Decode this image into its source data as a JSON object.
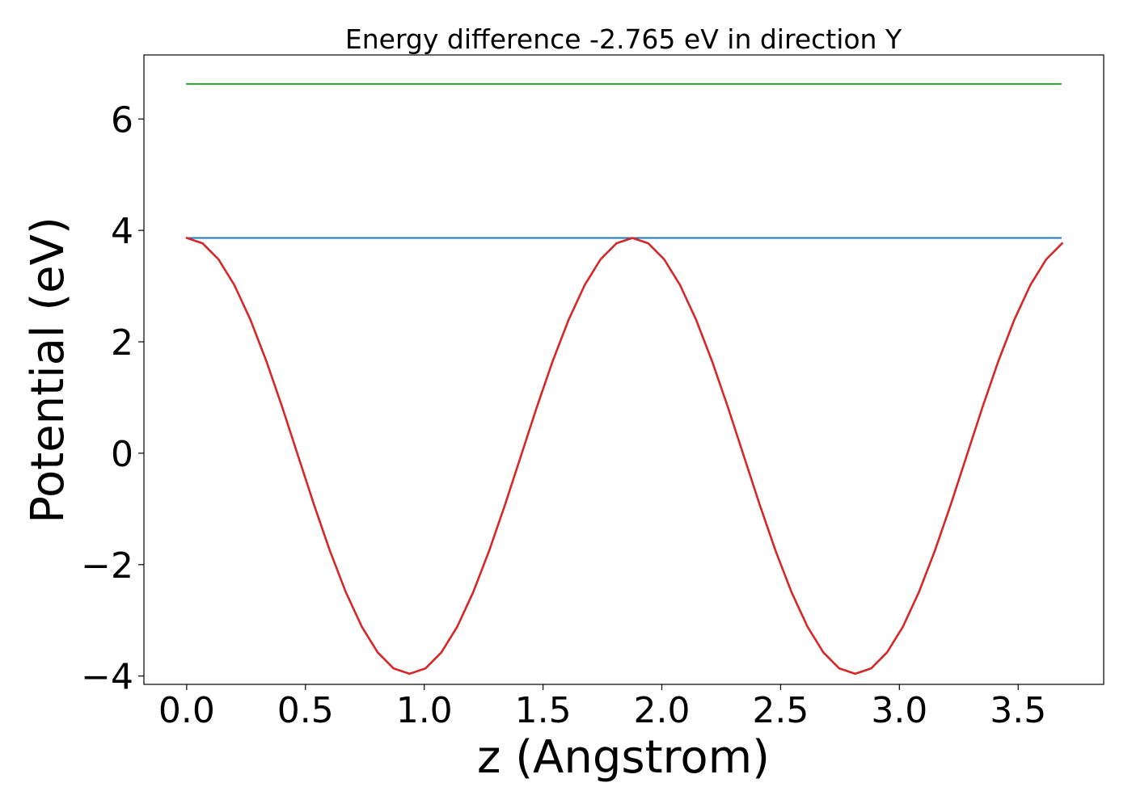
{
  "chart_data": {
    "type": "line",
    "title": "Energy difference -2.765 eV in direction Y",
    "xlabel": "z (Angstrom)",
    "ylabel": "Potential (eV)",
    "xlim": [
      -0.18,
      3.86
    ],
    "ylim": [
      -4.15,
      7.15
    ],
    "xticks": [
      0.0,
      0.5,
      1.0,
      1.5,
      2.0,
      2.5,
      3.0,
      3.5
    ],
    "xtick_labels": [
      "0.0",
      "0.5",
      "1.0",
      "1.5",
      "2.0",
      "2.5",
      "3.0",
      "3.5"
    ],
    "yticks": [
      -4,
      -2,
      0,
      2,
      4,
      6
    ],
    "ytick_labels": [
      "−4",
      "−2",
      "0",
      "2",
      "4",
      "6"
    ],
    "grid": false,
    "series": [
      {
        "color": "#2ca02c",
        "x": [
          0.0,
          3.68
        ],
        "y": [
          6.63,
          6.63
        ]
      },
      {
        "color": "#1f77b4",
        "x": [
          0.0,
          3.68
        ],
        "y": [
          3.865,
          3.865
        ]
      },
      {
        "color": "#d62728",
        "x": [
          0.0,
          0.067,
          0.134,
          0.201,
          0.268,
          0.335,
          0.402,
          0.469,
          0.536,
          0.603,
          0.67,
          0.737,
          0.804,
          0.871,
          0.938,
          1.005,
          1.072,
          1.139,
          1.206,
          1.273,
          1.34,
          1.407,
          1.474,
          1.541,
          1.608,
          1.675,
          1.742,
          1.809,
          1.876,
          1.943,
          2.01,
          2.077,
          2.144,
          2.211,
          2.278,
          2.345,
          2.412,
          2.479,
          2.546,
          2.613,
          2.68,
          2.747,
          2.814,
          2.881,
          2.948,
          3.015,
          3.082,
          3.149,
          3.216,
          3.283,
          3.35,
          3.417,
          3.484,
          3.551,
          3.618,
          3.685
        ],
        "y": [
          3.865,
          3.768,
          3.48,
          3.016,
          2.399,
          1.658,
          0.829,
          -0.048,
          -0.925,
          -1.754,
          -2.495,
          -3.113,
          -3.576,
          -3.864,
          -3.96,
          -3.864,
          -3.576,
          -3.113,
          -2.495,
          -1.754,
          -0.925,
          -0.048,
          0.829,
          1.658,
          2.399,
          3.016,
          3.48,
          3.768,
          3.865,
          3.768,
          3.48,
          3.016,
          2.399,
          1.658,
          0.829,
          -0.048,
          -0.925,
          -1.754,
          -2.495,
          -3.113,
          -3.576,
          -3.864,
          -3.96,
          -3.864,
          -3.576,
          -3.113,
          -2.495,
          -1.754,
          -0.925,
          -0.048,
          0.829,
          1.658,
          2.399,
          3.016,
          3.48,
          3.768
        ]
      }
    ]
  }
}
